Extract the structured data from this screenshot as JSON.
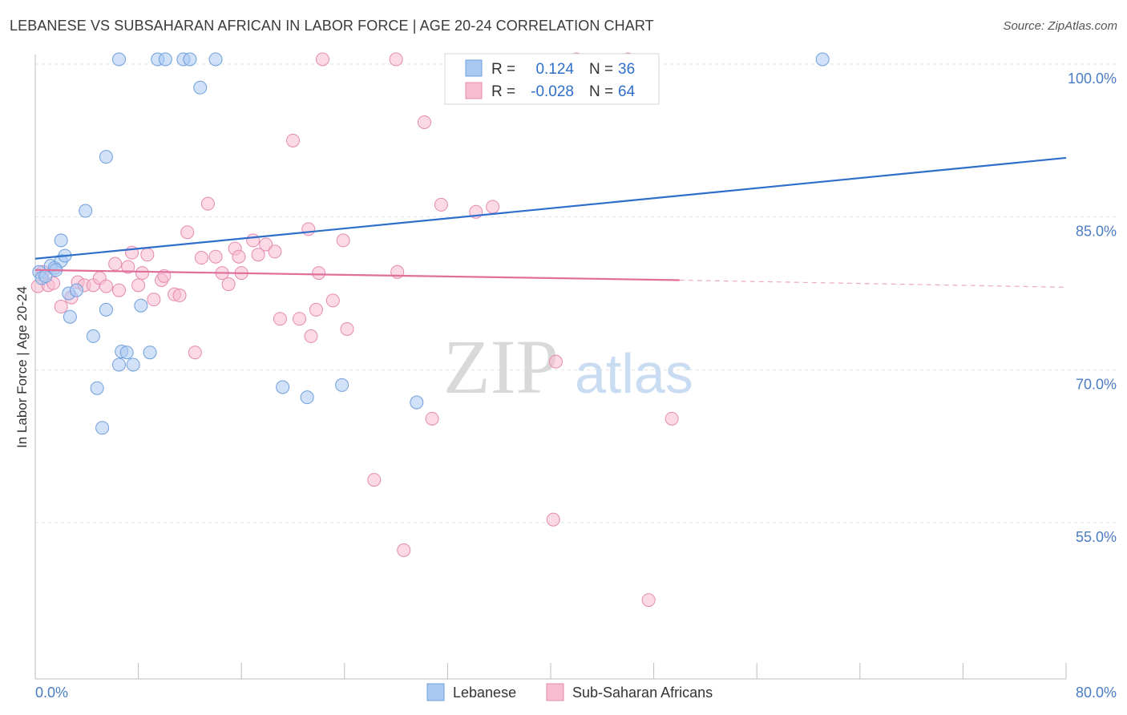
{
  "header": {
    "title": "LEBANESE VS SUBSAHARAN AFRICAN IN LABOR FORCE | AGE 20-24 CORRELATION CHART",
    "source": "Source: ZipAtlas.com"
  },
  "watermark": {
    "zip": "ZIP",
    "atlas": "atlas"
  },
  "stats": {
    "r_label": "R =",
    "n_label": "N =",
    "rows": [
      {
        "r": "0.124",
        "n": "36",
        "color": "#a9c9f2",
        "stroke": "#6f9fdc"
      },
      {
        "r": "-0.028",
        "n": "64",
        "color": "#f7bcd0",
        "stroke": "#e58ab0"
      }
    ]
  },
  "chart_data": {
    "type": "scatter",
    "title": "LEBANESE VS SUBSAHARAN AFRICAN IN LABOR FORCE | AGE 20-24 CORRELATION CHART",
    "xlabel": "",
    "ylabel": "In Labor Force | Age 20-24",
    "xlim": [
      0,
      80
    ],
    "ylim": [
      40,
      100
    ],
    "x_tick_labels": [
      "0.0%",
      "80.0%"
    ],
    "y_ticks": [
      {
        "value": 55,
        "label": "55.0%"
      },
      {
        "value": 70,
        "label": "70.0%"
      },
      {
        "value": 85,
        "label": "85.0%"
      },
      {
        "value": 100,
        "label": "100.0%"
      }
    ],
    "grid": "horizontal dashed",
    "legend_position": "bottom-center",
    "series": [
      {
        "name": "Lebanese",
        "color": "#a9c9f2",
        "stroke": "#6f9fdc",
        "line_color": "#2f6fca",
        "trend": {
          "x": [
            0,
            80
          ],
          "y": [
            80.9,
            90.8
          ]
        },
        "points": [
          [
            0.3,
            79.6
          ],
          [
            0.5,
            79.0
          ],
          [
            0.8,
            79.2
          ],
          [
            1.2,
            80.2
          ],
          [
            1.5,
            80.0
          ],
          [
            2.0,
            80.7
          ],
          [
            2.3,
            81.2
          ],
          [
            2.6,
            77.5
          ],
          [
            3.2,
            77.8
          ],
          [
            2.7,
            75.2
          ],
          [
            4.5,
            73.3
          ],
          [
            5.5,
            75.9
          ],
          [
            6.7,
            71.8
          ],
          [
            7.1,
            71.7
          ],
          [
            8.9,
            71.7
          ],
          [
            4.8,
            68.2
          ],
          [
            6.5,
            70.5
          ],
          [
            7.6,
            70.5
          ],
          [
            8.2,
            76.3
          ],
          [
            5.2,
            64.3
          ],
          [
            1.6,
            79.8
          ],
          [
            2.0,
            82.7
          ],
          [
            3.9,
            85.6
          ],
          [
            5.5,
            90.9
          ],
          [
            12.8,
            97.7
          ],
          [
            6.5,
            104.8
          ],
          [
            9.5,
            104.8
          ],
          [
            10.1,
            104.8
          ],
          [
            11.5,
            104.8
          ],
          [
            12.0,
            104.8
          ],
          [
            14.0,
            104.8
          ],
          [
            19.2,
            68.3
          ],
          [
            21.1,
            67.3
          ],
          [
            23.8,
            68.5
          ],
          [
            29.6,
            66.8
          ],
          [
            61.1,
            104.8
          ]
        ]
      },
      {
        "name": "Sub-Saharan Africans",
        "color": "#f7bcd0",
        "stroke": "#e58ab0",
        "line_color": "#e06f9a",
        "trend": {
          "x": [
            0,
            50
          ],
          "y": [
            79.8,
            78.8
          ]
        },
        "trend_dashed": {
          "x": [
            50,
            80
          ],
          "y": [
            78.8,
            78.1
          ]
        },
        "points": [
          [
            0.2,
            78.2
          ],
          [
            0.6,
            79.6
          ],
          [
            1.0,
            78.3
          ],
          [
            1.4,
            78.5
          ],
          [
            2.0,
            76.2
          ],
          [
            2.8,
            77.1
          ],
          [
            3.3,
            78.6
          ],
          [
            3.8,
            78.3
          ],
          [
            4.5,
            78.3
          ],
          [
            5.0,
            79.0
          ],
          [
            5.5,
            78.2
          ],
          [
            6.2,
            80.4
          ],
          [
            6.5,
            77.8
          ],
          [
            7.2,
            80.1
          ],
          [
            7.5,
            81.5
          ],
          [
            8.0,
            78.3
          ],
          [
            8.3,
            79.5
          ],
          [
            8.7,
            81.3
          ],
          [
            9.2,
            76.9
          ],
          [
            9.8,
            78.8
          ],
          [
            10.0,
            79.2
          ],
          [
            10.8,
            77.4
          ],
          [
            11.2,
            77.3
          ],
          [
            11.8,
            83.5
          ],
          [
            12.4,
            71.7
          ],
          [
            12.9,
            81.0
          ],
          [
            13.4,
            86.3
          ],
          [
            14.0,
            81.1
          ],
          [
            14.5,
            79.5
          ],
          [
            15.0,
            78.4
          ],
          [
            15.5,
            81.9
          ],
          [
            15.8,
            81.1
          ],
          [
            16.0,
            79.5
          ],
          [
            16.9,
            82.7
          ],
          [
            17.3,
            81.3
          ],
          [
            17.9,
            82.3
          ],
          [
            18.6,
            81.6
          ],
          [
            19.0,
            75.0
          ],
          [
            20.0,
            92.5
          ],
          [
            20.5,
            75.0
          ],
          [
            21.2,
            83.8
          ],
          [
            21.4,
            73.3
          ],
          [
            21.8,
            75.9
          ],
          [
            22.0,
            79.5
          ],
          [
            23.1,
            76.8
          ],
          [
            23.9,
            82.7
          ],
          [
            24.2,
            74.0
          ],
          [
            22.3,
            104.8
          ],
          [
            28.0,
            104.8
          ],
          [
            28.1,
            79.6
          ],
          [
            26.3,
            59.2
          ],
          [
            28.6,
            52.3
          ],
          [
            30.2,
            94.3
          ],
          [
            30.8,
            65.2
          ],
          [
            31.5,
            86.2
          ],
          [
            34.2,
            85.5
          ],
          [
            35.5,
            86.0
          ],
          [
            40.4,
            70.8
          ],
          [
            40.2,
            55.3
          ],
          [
            42.0,
            104.8
          ],
          [
            46.0,
            104.8
          ],
          [
            47.6,
            47.4
          ],
          [
            49.4,
            65.2
          ],
          [
            46.5,
            99.9
          ]
        ]
      }
    ]
  }
}
